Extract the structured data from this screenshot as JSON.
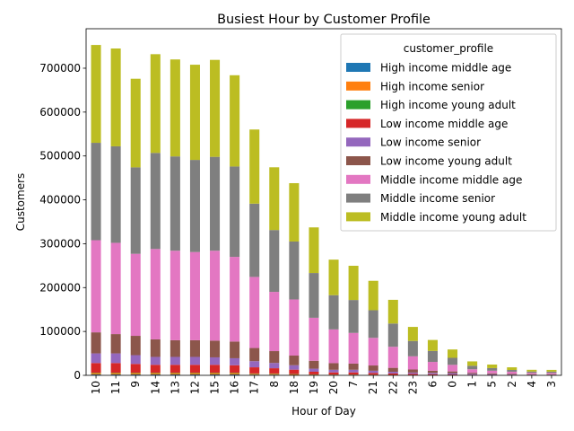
{
  "chart_data": {
    "type": "bar",
    "stacked": true,
    "title": "Busiest Hour by Customer Profile",
    "xlabel": "Hour of Day",
    "ylabel": "Customers",
    "ylim": [
      0,
      790000
    ],
    "yticks": [
      0,
      100000,
      200000,
      300000,
      400000,
      500000,
      600000,
      700000
    ],
    "ytick_labels": [
      "0",
      "100000",
      "200000",
      "300000",
      "400000",
      "500000",
      "600000",
      "700000"
    ],
    "grid": false,
    "legend_title": "customer_profile",
    "legend_position": "top-right",
    "categories": [
      "10",
      "11",
      "9",
      "14",
      "13",
      "12",
      "15",
      "16",
      "17",
      "8",
      "18",
      "19",
      "20",
      "7",
      "21",
      "22",
      "23",
      "6",
      "0",
      "1",
      "5",
      "2",
      "4",
      "3"
    ],
    "series": [
      {
        "name": "High income middle age",
        "color": "#1f77b4",
        "values": [
          2000,
          2000,
          2000,
          2000,
          2000,
          2000,
          2000,
          2000,
          1500,
          1500,
          1000,
          800,
          600,
          600,
          500,
          400,
          300,
          200,
          150,
          100,
          80,
          60,
          50,
          50
        ]
      },
      {
        "name": "High income senior",
        "color": "#ff7f0e",
        "values": [
          3000,
          3000,
          3000,
          3000,
          3000,
          3000,
          3000,
          3000,
          2000,
          2000,
          1500,
          1000,
          800,
          800,
          700,
          500,
          400,
          300,
          200,
          150,
          100,
          80,
          70,
          60
        ]
      },
      {
        "name": "High income young adult",
        "color": "#2ca02c",
        "values": [
          1000,
          1000,
          1000,
          1000,
          1000,
          1000,
          1000,
          1000,
          800,
          700,
          500,
          400,
          300,
          300,
          250,
          200,
          150,
          100,
          80,
          60,
          50,
          40,
          30,
          30
        ]
      },
      {
        "name": "Low income middle age",
        "color": "#d62728",
        "values": [
          22000,
          22000,
          20000,
          18000,
          18000,
          18000,
          18000,
          17000,
          14000,
          12000,
          10000,
          6000,
          5000,
          5000,
          4000,
          3000,
          2500,
          2000,
          1500,
          1000,
          800,
          600,
          500,
          500
        ]
      },
      {
        "name": "Low income senior",
        "color": "#9467bd",
        "values": [
          22000,
          22000,
          20000,
          18000,
          18000,
          18000,
          17000,
          16000,
          14000,
          12000,
          10000,
          7000,
          6000,
          6000,
          5000,
          4000,
          3000,
          3000,
          3000,
          2000,
          1500,
          1000,
          800,
          800
        ]
      },
      {
        "name": "Low income young adult",
        "color": "#8c564b",
        "values": [
          48000,
          44000,
          44000,
          40000,
          38000,
          38000,
          38000,
          38000,
          30000,
          27000,
          22000,
          18000,
          15000,
          14000,
          12000,
          9000,
          7000,
          5000,
          4000,
          2500,
          2000,
          1500,
          1200,
          1000
        ]
      },
      {
        "name": "Middle income middle age",
        "color": "#e377c2",
        "values": [
          210000,
          208000,
          187000,
          206000,
          204000,
          201000,
          205000,
          193000,
          162000,
          135000,
          128000,
          98000,
          77000,
          70000,
          63000,
          48000,
          30000,
          20000,
          15000,
          8000,
          6000,
          5000,
          3000,
          3000
        ]
      },
      {
        "name": "Middle income senior",
        "color": "#7f7f7f",
        "values": [
          222000,
          220000,
          197000,
          219000,
          215000,
          210000,
          214000,
          206000,
          167000,
          141000,
          132000,
          102000,
          78000,
          75000,
          63000,
          53000,
          35000,
          25000,
          16000,
          8000,
          6000,
          4000,
          3000,
          3000
        ]
      },
      {
        "name": "Middle income young adult",
        "color": "#bcbd22",
        "values": [
          223000,
          223000,
          202000,
          225000,
          221000,
          217000,
          221000,
          208000,
          169000,
          143000,
          133000,
          104000,
          81000,
          78000,
          67000,
          54000,
          32000,
          25000,
          19000,
          10000,
          8000,
          6000,
          4000,
          4000
        ]
      }
    ]
  }
}
